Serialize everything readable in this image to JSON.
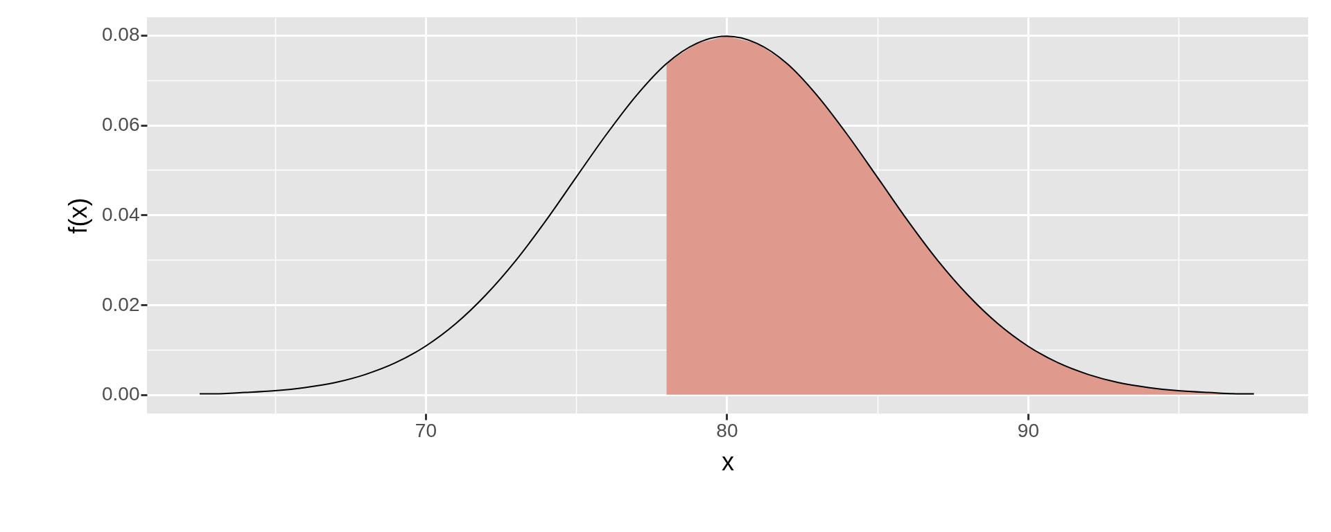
{
  "chart_data": {
    "type": "line",
    "xlabel": "x",
    "ylabel": "f(x)",
    "xlim": [
      60.75,
      99.3
    ],
    "ylim": [
      -0.0042,
      0.084
    ],
    "xticks": [
      {
        "value": 65,
        "label": null
      },
      70,
      {
        "value": 75,
        "label": null
      },
      80,
      {
        "value": 85,
        "label": null
      },
      90,
      {
        "value": 95,
        "label": null
      }
    ],
    "yticks": [
      {
        "value": 0,
        "label": "0.00"
      },
      {
        "value": 0.01,
        "label": null
      },
      0.02,
      {
        "value": 0.03,
        "label": null
      },
      0.04,
      {
        "value": 0.05,
        "label": null
      },
      0.06,
      {
        "value": 0.07,
        "label": null
      },
      0.08
    ],
    "grid": true,
    "series": [
      {
        "type": "area",
        "color": "#e0998d",
        "x": [
          78,
          79,
          80,
          81,
          82,
          83,
          84,
          85,
          86,
          87,
          88,
          89,
          90,
          91,
          92,
          93,
          94,
          95,
          96,
          97,
          97.5
        ],
        "values": [
          0.0737,
          0.0782,
          0.0798,
          0.0782,
          0.0737,
          0.0666,
          0.0579,
          0.0484,
          0.0388,
          0.0299,
          0.0222,
          0.0158,
          0.0108,
          0.0071,
          0.0045,
          0.0027,
          0.0016,
          0.0009,
          0.0005,
          0.0002,
          0.0002
        ]
      },
      {
        "color": "#000000",
        "x": [
          62.5,
          63,
          64,
          65,
          66,
          67,
          68,
          69,
          70,
          71,
          72,
          73,
          74,
          75,
          76,
          77,
          78,
          79,
          80,
          81,
          82,
          83,
          84,
          85,
          86,
          87,
          88,
          89,
          90,
          91,
          92,
          93,
          94,
          95,
          96,
          97,
          97.5
        ],
        "values": [
          0.0002,
          0.0002,
          0.0005,
          0.0009,
          0.0016,
          0.0027,
          0.0045,
          0.0071,
          0.0108,
          0.0158,
          0.0222,
          0.0299,
          0.0388,
          0.0484,
          0.0579,
          0.0666,
          0.0737,
          0.0782,
          0.0798,
          0.0782,
          0.0737,
          0.0666,
          0.0579,
          0.0484,
          0.0388,
          0.0299,
          0.0222,
          0.0158,
          0.0108,
          0.0071,
          0.0045,
          0.0027,
          0.0016,
          0.0009,
          0.0005,
          0.0002,
          0.0002
        ]
      }
    ]
  }
}
